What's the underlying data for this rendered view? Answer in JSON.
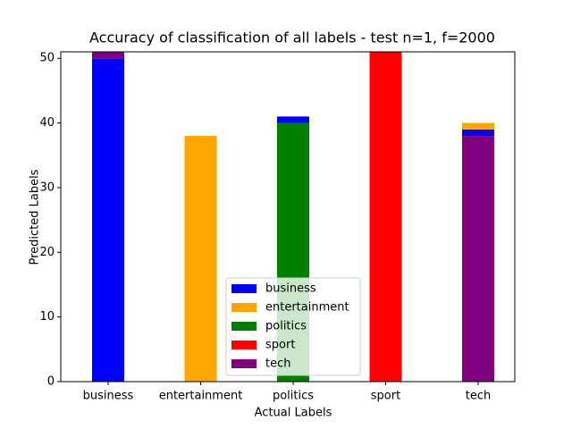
{
  "chart_data": {
    "type": "stacked-bar",
    "title": "Accuracy of classification of all labels - test n=1, f=2000",
    "x_label": "Actual Labels",
    "y_label": "Predicted Labels",
    "categories": [
      "business",
      "entertainment",
      "politics",
      "sport",
      "tech"
    ],
    "series": [
      {
        "name": "business",
        "color": "#0000ff",
        "values": [
          50,
          0,
          1,
          0,
          1
        ]
      },
      {
        "name": "entertainment",
        "color": "#ffa500",
        "values": [
          0,
          38,
          0,
          0,
          1
        ]
      },
      {
        "name": "politics",
        "color": "#008000",
        "values": [
          0,
          0,
          40,
          0,
          0
        ]
      },
      {
        "name": "sport",
        "color": "#ff0000",
        "values": [
          0,
          0,
          0,
          51,
          0
        ]
      },
      {
        "name": "tech",
        "color": "#800080",
        "values": [
          1,
          0,
          0,
          0,
          38
        ]
      }
    ],
    "ylim": [
      0,
      51
    ],
    "yticks": [
      0,
      10,
      20,
      30,
      40,
      50
    ],
    "legend": "lower center"
  }
}
